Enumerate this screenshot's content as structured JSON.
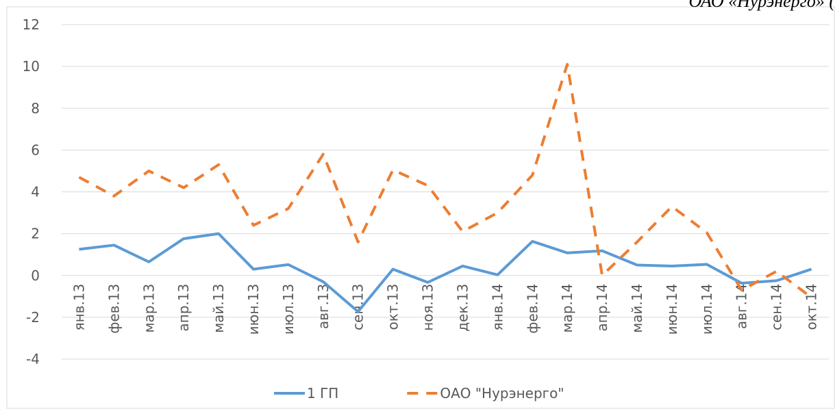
{
  "caption": "ОАО «Нурэнерго» (",
  "chart_data": {
    "type": "line",
    "categories": [
      "янв.13",
      "фев.13",
      "мар.13",
      "апр.13",
      "май.13",
      "июн.13",
      "июл.13",
      "авг.13",
      "сен.13",
      "окт.13",
      "ноя.13",
      "дек.13",
      "янв.14",
      "фев.14",
      "мар.14",
      "апр.14",
      "май.14",
      "июн.14",
      "июл.14",
      "авг.14",
      "сен.14",
      "окт.14"
    ],
    "series": [
      {
        "name": "1 ГП",
        "color": "#5b9bd5",
        "dash": false,
        "values": [
          1.25,
          1.45,
          0.65,
          1.76,
          2.0,
          0.3,
          0.52,
          -0.3,
          -1.73,
          0.3,
          -0.33,
          0.45,
          0.03,
          1.63,
          1.08,
          1.18,
          0.5,
          0.45,
          0.53,
          -0.37,
          -0.25,
          0.3
        ]
      },
      {
        "name": "ОАО \"Нурэнерго\"",
        "color": "#ed7d31",
        "dash": true,
        "values": [
          4.7,
          3.8,
          5.0,
          4.2,
          5.3,
          2.4,
          3.2,
          5.8,
          1.6,
          5.05,
          4.3,
          2.1,
          3.0,
          4.8,
          10.1,
          0,
          1.6,
          3.3,
          2.05,
          -0.7,
          0.2,
          -1.05
        ]
      }
    ],
    "ylim": [
      -4,
      12
    ],
    "yticks": [
      -4,
      -2,
      0,
      2,
      4,
      6,
      8,
      10,
      12
    ],
    "grid": true,
    "legend": "bottom"
  }
}
